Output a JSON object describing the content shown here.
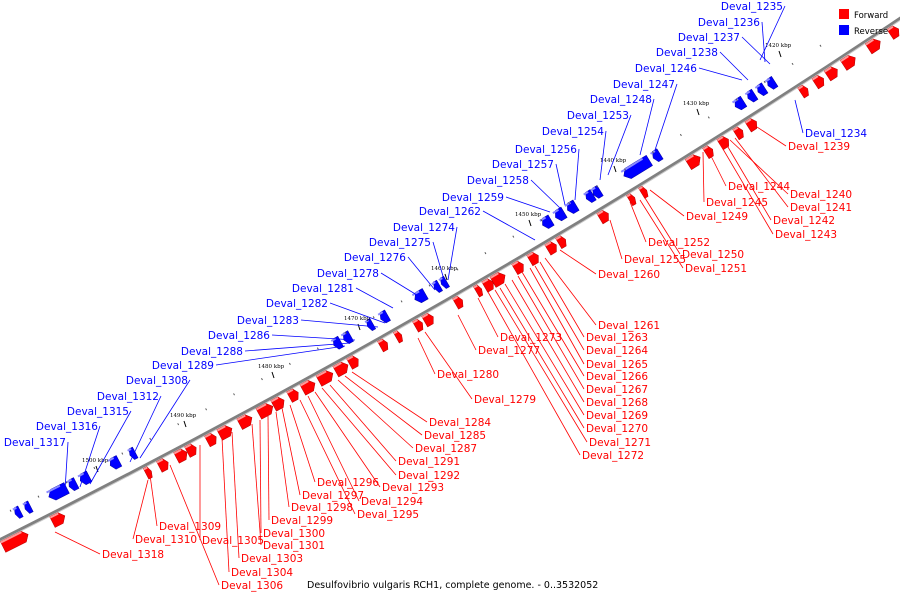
{
  "caption": "Desulfovibrio vulgaris RCH1, complete genome. - 0..3532052",
  "legend": [
    {
      "label": "Forward",
      "color": "#ff0000"
    },
    {
      "label": "Reverse",
      "color": "#0000ff"
    }
  ],
  "ticks": [
    "1420 kbp",
    "1430 kbp",
    "1440 kbp",
    "1450 kbp",
    "1460 kbp",
    "1470 kbp",
    "1480 kbp",
    "1490 kbp",
    "1500 kbp"
  ],
  "reverse_genes": [
    "Deval_1235",
    "Deval_1236",
    "Deval_1237",
    "Deval_1238",
    "Deval_1246",
    "Deval_1247",
    "Deval_1248",
    "Deval_1253",
    "Deval_1254",
    "Deval_1256",
    "Deval_1257",
    "Deval_1258",
    "Deval_1259",
    "Deval_1262",
    "Deval_1274",
    "Deval_1275",
    "Deval_1276",
    "Deval_1278",
    "Deval_1281",
    "Deval_1282",
    "Deval_1283",
    "Deval_1286",
    "Deval_1288",
    "Deval_1289",
    "Deval_1308",
    "Deval_1312",
    "Deval_1315",
    "Deval_1316",
    "Deval_1317",
    "Deval_1234"
  ],
  "forward_genes": [
    "Deval_1239",
    "Deval_1240",
    "Deval_1241",
    "Deval_1242",
    "Deval_1243",
    "Deval_1244",
    "Deval_1245",
    "Deval_1249",
    "Deval_1250",
    "Deval_1251",
    "Deval_1252",
    "Deval_1255",
    "Deval_1260",
    "Deval_1261",
    "Deval_1263",
    "Deval_1264",
    "Deval_1265",
    "Deval_1266",
    "Deval_1267",
    "Deval_1268",
    "Deval_1269",
    "Deval_1270",
    "Deval_1271",
    "Deval_1272",
    "Deval_1273",
    "Deval_1277",
    "Deval_1279",
    "Deval_1280",
    "Deval_1284",
    "Deval_1285",
    "Deval_1287",
    "Deval_1291",
    "Deval_1292",
    "Deval_1293",
    "Deval_1294",
    "Deval_1295",
    "Deval_1296",
    "Deval_1297",
    "Deval_1298",
    "Deval_1299",
    "Deval_1300",
    "Deval_1301",
    "Deval_1303",
    "Deval_1304",
    "Deval_1305",
    "Deval_1306",
    "Deval_1309",
    "Deval_1310",
    "Deval_1318"
  ]
}
